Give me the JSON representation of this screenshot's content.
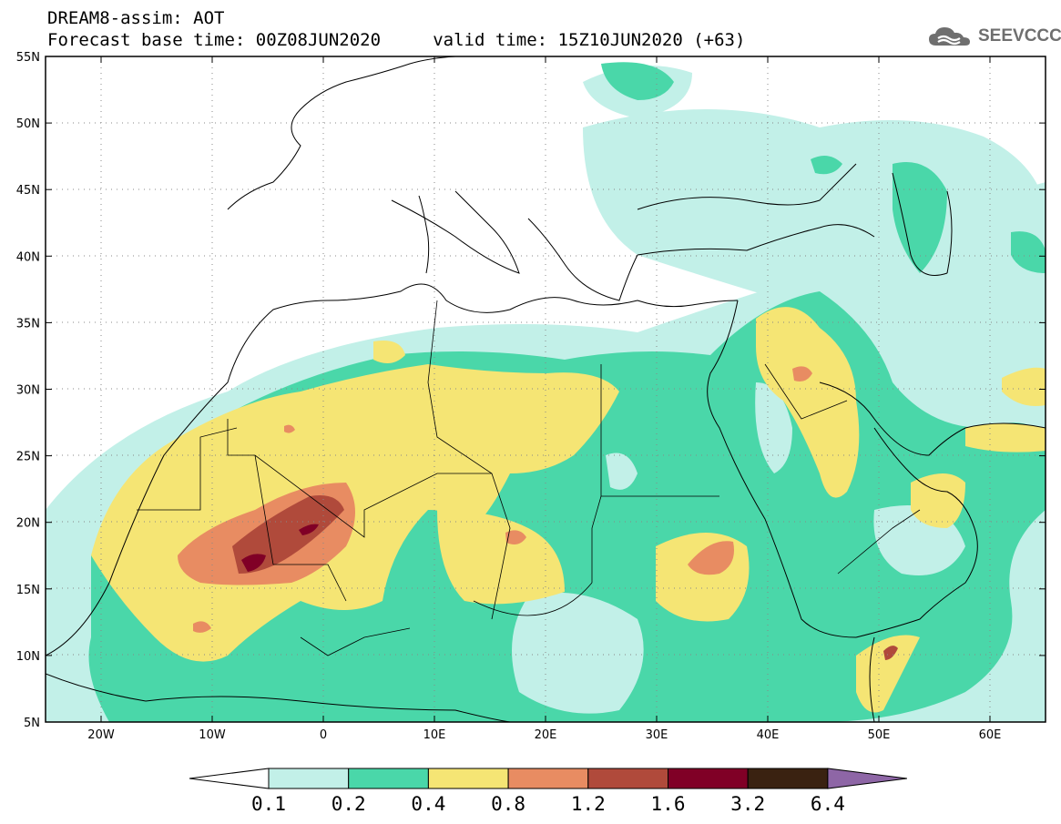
{
  "header": {
    "line1": "DREAM8-assim: AOT",
    "line2": "Forecast base time: 00Z08JUN2020     valid time: 15Z10JUN2020 (+63)"
  },
  "logo": {
    "text": "SEEVCCC",
    "icon": "cloud-icon"
  },
  "map": {
    "lat_labels": [
      "55N",
      "50N",
      "45N",
      "40N",
      "35N",
      "30N",
      "25N",
      "20N",
      "15N",
      "10N",
      "5N"
    ],
    "lon_labels": [
      "20W",
      "10W",
      "0",
      "10E",
      "20E",
      "30E",
      "40E",
      "50E",
      "60E"
    ],
    "lon_range": [
      -25,
      65
    ],
    "lat_range": [
      5,
      55
    ],
    "grid": "dotted"
  },
  "colorbar": {
    "labels": [
      "0.1",
      "0.2",
      "0.4",
      "0.8",
      "1.2",
      "1.6",
      "3.2",
      "6.4"
    ],
    "colors": [
      "#ffffff",
      "#c2f0e8",
      "#4ad7a9",
      "#f5e574",
      "#e88c62",
      "#b04a3b",
      "#800026",
      "#3a2211",
      "#8e66a6"
    ]
  }
}
